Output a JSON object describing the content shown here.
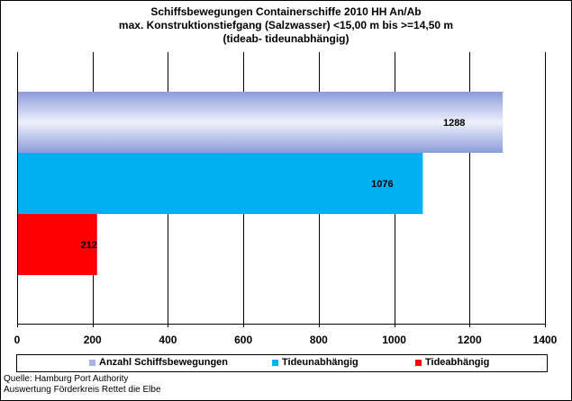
{
  "chart_data": {
    "type": "bar",
    "orientation": "horizontal",
    "title_lines": [
      "Schiffsbewegungen  Containerschiffe  2010 HH An/Ab",
      "max. Konstruktionstiefgang  (Salzwasser)  <15,00 m bis >=14,50 m",
      "(tideab- tideunabhängig)"
    ],
    "xlim": [
      0,
      1400
    ],
    "x_ticks": [
      "0",
      "200",
      "400",
      "600",
      "800",
      "1000",
      "1200",
      "1400"
    ],
    "x_tick_values": [
      0,
      200,
      400,
      600,
      800,
      1000,
      1200,
      1400
    ],
    "grid": "vertical",
    "legend_position": "bottom",
    "series": [
      {
        "name": "Anzahl Schiffsbewegungen",
        "value": 1288,
        "label": "1288",
        "color": "#a9b4e4"
      },
      {
        "name": "Tideunabhängig",
        "value": 1076,
        "label": "1076",
        "color": "#00b0f0"
      },
      {
        "name": "Tideabhängig",
        "value": 212,
        "label": "212",
        "color": "#ff0000"
      }
    ]
  },
  "source": {
    "line1": "Quelle: Hamburg Port Authority",
    "line2": "Auswertung Förderkreis Rettet die Elbe"
  }
}
